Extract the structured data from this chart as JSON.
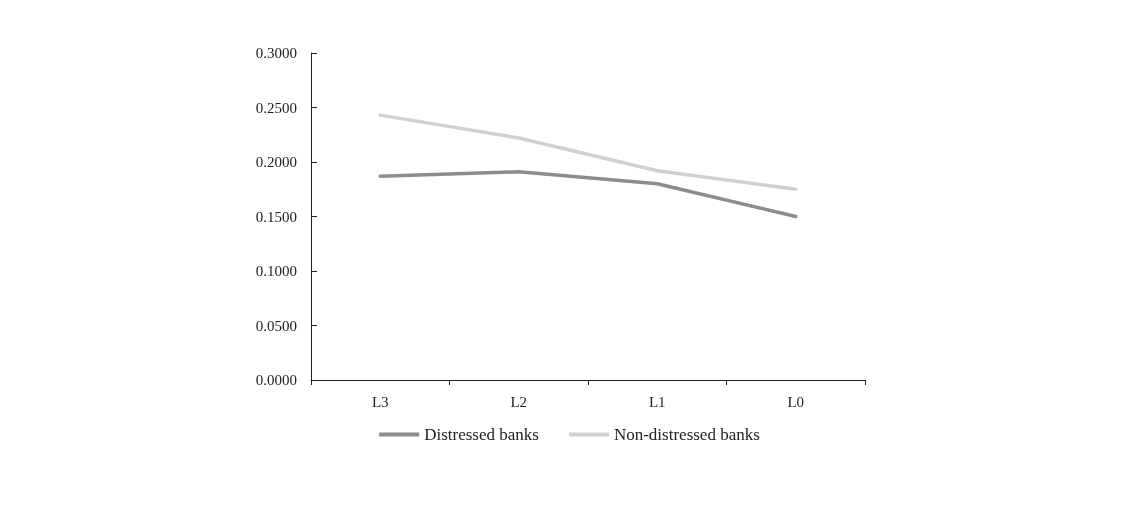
{
  "chart_data": {
    "type": "line",
    "categories": [
      "L3",
      "L2",
      "L1",
      "L0"
    ],
    "series": [
      {
        "name": "Distressed banks",
        "color": "#8c8c8c",
        "values": [
          0.187,
          0.191,
          0.18,
          0.15
        ]
      },
      {
        "name": "Non-distressed banks",
        "color": "#d0d0d0",
        "values": [
          0.243,
          0.222,
          0.192,
          0.175
        ]
      }
    ],
    "ylim": [
      0,
      0.3
    ],
    "yticks": [
      {
        "value": 0,
        "label": "0.0000"
      },
      {
        "value": 0.05,
        "label": "0.0500"
      },
      {
        "value": 0.1,
        "label": "0.1000"
      },
      {
        "value": 0.15,
        "label": "0.1500"
      },
      {
        "value": 0.2,
        "label": "0.2000"
      },
      {
        "value": 0.25,
        "label": "0.2500"
      },
      {
        "value": 0.3,
        "label": "0.3000"
      }
    ],
    "grid": false,
    "legend": "bottom",
    "marker": "none",
    "line_style": "solid"
  }
}
